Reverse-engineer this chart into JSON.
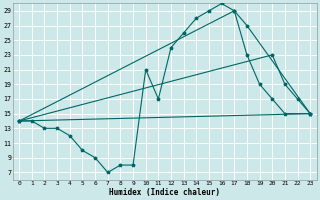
{
  "xlabel": "Humidex (Indice chaleur)",
  "bg_color": "#cce8e8",
  "grid_color": "#ffffff",
  "line_color": "#006666",
  "xlim": [
    -0.5,
    23.5
  ],
  "ylim": [
    6,
    30
  ],
  "yticks": [
    7,
    9,
    11,
    13,
    15,
    17,
    19,
    21,
    23,
    25,
    27,
    29
  ],
  "xticks": [
    0,
    1,
    2,
    3,
    4,
    5,
    6,
    7,
    8,
    9,
    10,
    11,
    12,
    13,
    14,
    15,
    16,
    17,
    18,
    19,
    20,
    21,
    22,
    23
  ],
  "series": [
    {
      "x": [
        0,
        1,
        2,
        3,
        4,
        5,
        6,
        7,
        8,
        9,
        10,
        11,
        12,
        13,
        14,
        15,
        16,
        17,
        18,
        19,
        20,
        21,
        23
      ],
      "y": [
        14,
        14,
        13,
        13,
        12,
        10,
        9,
        7,
        8,
        8,
        21,
        17,
        24,
        26,
        28,
        29,
        30,
        29,
        23,
        19,
        17,
        15,
        15
      ]
    },
    {
      "x": [
        0,
        23
      ],
      "y": [
        14,
        15
      ]
    },
    {
      "x": [
        0,
        20,
        21,
        22,
        23
      ],
      "y": [
        14,
        23,
        19,
        17,
        15
      ]
    },
    {
      "x": [
        0,
        17,
        18,
        23
      ],
      "y": [
        14,
        29,
        27,
        15
      ]
    }
  ]
}
